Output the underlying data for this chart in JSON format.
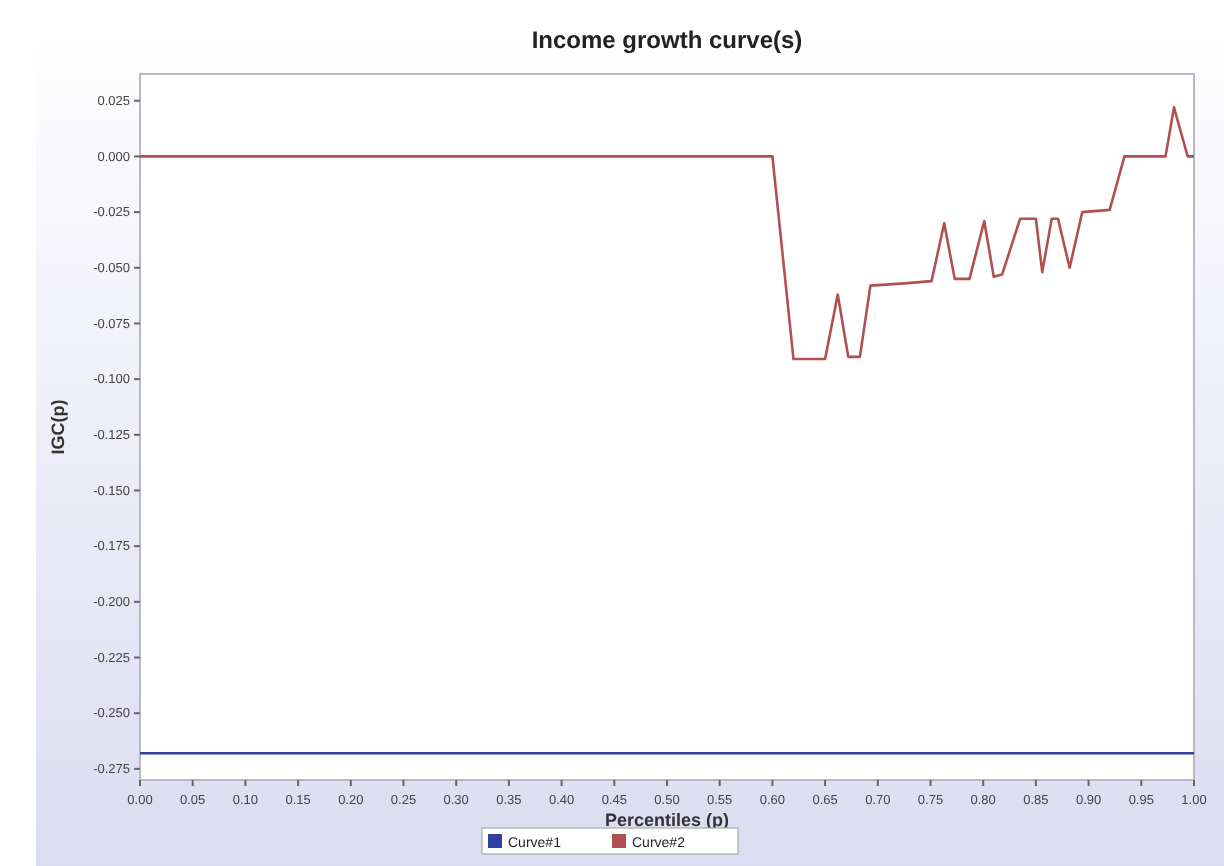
{
  "chart_data": {
    "type": "line",
    "title": "Income growth curve(s)",
    "xlabel": "Percentiles (p)",
    "ylabel": "IGC(p)",
    "xlim": [
      0,
      1
    ],
    "xticks": [
      {
        "value": 0,
        "label": "0.00"
      },
      {
        "value": 0.05,
        "label": "0.05"
      },
      {
        "value": 0.1,
        "label": "0.10"
      },
      {
        "value": 0.15,
        "label": "0.15"
      },
      {
        "value": 0.2,
        "label": "0.20"
      },
      {
        "value": 0.25,
        "label": "0.25"
      },
      {
        "value": 0.3,
        "label": "0.30"
      },
      {
        "value": 0.35,
        "label": "0.35"
      },
      {
        "value": 0.4,
        "label": "0.40"
      },
      {
        "value": 0.45,
        "label": "0.45"
      },
      {
        "value": 0.5,
        "label": "0.50"
      },
      {
        "value": 0.55,
        "label": "0.55"
      },
      {
        "value": 0.6,
        "label": "0.60"
      },
      {
        "value": 0.65,
        "label": "0.65"
      },
      {
        "value": 0.7,
        "label": "0.70"
      },
      {
        "value": 0.75,
        "label": "0.75"
      },
      {
        "value": 0.8,
        "label": "0.80"
      },
      {
        "value": 0.85,
        "label": "0.85"
      },
      {
        "value": 0.9,
        "label": "0.90"
      },
      {
        "value": 0.95,
        "label": "0.95"
      },
      {
        "value": 1,
        "label": "1.00"
      }
    ],
    "ylim": [
      -0.28,
      0.037
    ],
    "yticks": [
      {
        "value": 0.025,
        "label": "0.025"
      },
      {
        "value": 0,
        "label": "0.000"
      },
      {
        "value": -0.025,
        "label": "-0.025"
      },
      {
        "value": -0.05,
        "label": "-0.050"
      },
      {
        "value": -0.075,
        "label": "-0.075"
      },
      {
        "value": -0.1,
        "label": "-0.100"
      },
      {
        "value": -0.125,
        "label": "-0.125"
      },
      {
        "value": -0.15,
        "label": "-0.150"
      },
      {
        "value": -0.175,
        "label": "-0.175"
      },
      {
        "value": -0.2,
        "label": "-0.200"
      },
      {
        "value": -0.225,
        "label": "-0.225"
      },
      {
        "value": -0.25,
        "label": "-0.250"
      },
      {
        "value": -0.275,
        "label": "-0.275"
      }
    ],
    "grid": false,
    "legend": "bottom",
    "marker": "none",
    "line_style": "solid",
    "series": [
      {
        "name": "Curve#1",
        "color": "#3040a0",
        "x": [
          0,
          1
        ],
        "values": [
          -0.268,
          -0.268
        ]
      },
      {
        "name": "Curve#2",
        "color": "#b05050",
        "x": [
          0,
          0.6,
          0.62,
          0.65,
          0.662,
          0.672,
          0.683,
          0.693,
          0.725,
          0.751,
          0.763,
          0.773,
          0.787,
          0.801,
          0.81,
          0.818,
          0.835,
          0.85,
          0.856,
          0.865,
          0.871,
          0.882,
          0.894,
          0.92,
          0.934,
          0.973,
          0.981,
          0.994,
          1
        ],
        "values": [
          0,
          0,
          -0.091,
          -0.091,
          -0.062,
          -0.09,
          -0.09,
          -0.058,
          -0.057,
          -0.056,
          -0.03,
          -0.055,
          -0.055,
          -0.029,
          -0.054,
          -0.053,
          -0.028,
          -0.028,
          -0.052,
          -0.028,
          -0.028,
          -0.05,
          -0.025,
          -0.024,
          0,
          0,
          0.022,
          0,
          0
        ]
      }
    ]
  }
}
